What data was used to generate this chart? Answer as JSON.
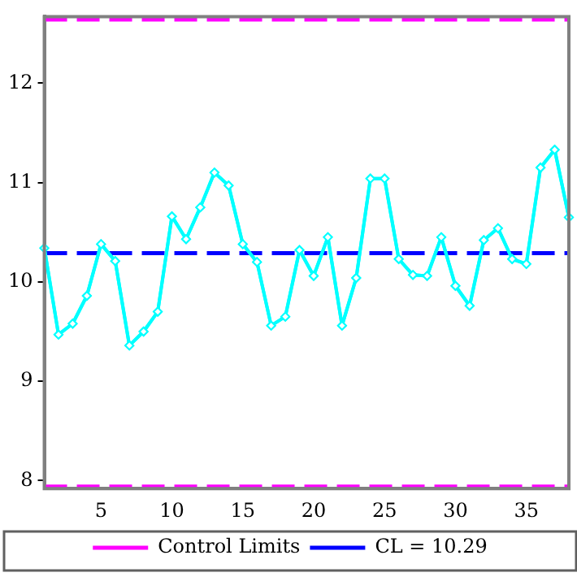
{
  "chart_data": {
    "type": "line",
    "x": [
      1,
      2,
      3,
      4,
      5,
      6,
      7,
      8,
      9,
      10,
      11,
      12,
      13,
      14,
      15,
      16,
      17,
      18,
      19,
      20,
      21,
      22,
      23,
      24,
      25,
      26,
      27,
      28,
      29,
      30,
      31,
      32,
      33,
      34,
      35,
      36,
      37,
      38
    ],
    "series": [
      {
        "color": "#00ffff",
        "values": [
          10.34,
          9.47,
          9.58,
          9.86,
          10.38,
          10.21,
          9.36,
          9.5,
          9.7,
          10.66,
          10.43,
          10.75,
          11.1,
          10.97,
          10.38,
          10.2,
          9.56,
          9.65,
          10.32,
          10.06,
          10.45,
          9.56,
          10.04,
          11.04,
          11.04,
          10.23,
          10.07,
          10.06,
          10.45,
          9.96,
          9.76,
          10.42,
          10.54,
          10.23,
          10.18,
          11.15,
          11.33,
          10.65
        ]
      }
    ],
    "xlim": [
      1,
      38
    ],
    "xticks": [
      5,
      10,
      15,
      20,
      25,
      30,
      35
    ],
    "ylim": [
      7.92,
      12.67
    ],
    "yticks": [
      8,
      9,
      10,
      11,
      12
    ],
    "ref_lines": [
      {
        "axis": "y",
        "value": 12.64,
        "label": "Control Limits",
        "color": "#ff00ff",
        "line_style": "dashed"
      },
      {
        "axis": "y",
        "value": 7.94,
        "label": null,
        "color": "#ff00ff",
        "line_style": "dashed"
      },
      {
        "axis": "y",
        "value": 10.29,
        "label": "CL = 10.29",
        "color": "#0000ff",
        "line_style": "dashed"
      }
    ],
    "marker": "diamond",
    "line_style": "solid",
    "grid": false,
    "legend": "bottom"
  }
}
